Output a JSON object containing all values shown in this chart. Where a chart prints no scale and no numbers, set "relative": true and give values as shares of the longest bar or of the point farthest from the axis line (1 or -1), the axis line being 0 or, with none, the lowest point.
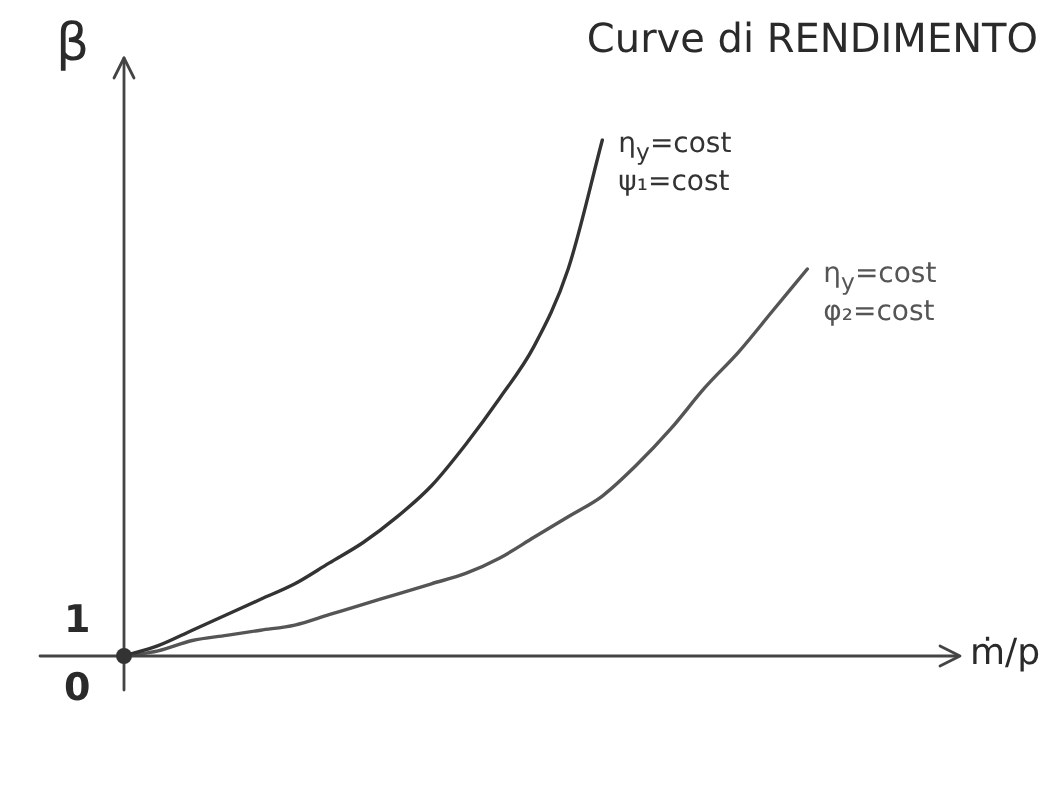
{
  "chart_data": {
    "type": "line",
    "title": "Curve di RENDIMENTO",
    "xlabel": "ṁ/p",
    "ylabel": "β",
    "relative": true,
    "annotations": [
      "1",
      "0"
    ],
    "marker": "none",
    "line_style": "solid",
    "categories": [
      null,
      null,
      null,
      null,
      null,
      null,
      null,
      null,
      null,
      null,
      null,
      null,
      null,
      null,
      null,
      null,
      null,
      null,
      null,
      null,
      null,
      null,
      null,
      null,
      null
    ],
    "series": [
      {
        "name": "η$_{y}$=cost\nψ₁=cost",
        "color": "#333333",
        "values": [
          0,
          0.02,
          0.05,
          0.08,
          0.11,
          0.14,
          0.18,
          0.22,
          0.27,
          0.33,
          0.41,
          0.5,
          0.6,
          0.75,
          1,
          null,
          null,
          null,
          null,
          null,
          null,
          null,
          null,
          null,
          null
        ]
      },
      {
        "name": "η$_{y}$=cost\nφ₂=cost",
        "color": "#555555",
        "values": [
          0,
          0.01,
          0.03,
          0.04,
          0.05,
          0.06,
          0.08,
          0.1,
          0.12,
          0.14,
          0.16,
          0.19,
          0.23,
          0.27,
          0.31,
          0.37,
          0.44,
          0.52,
          0.59,
          0.67,
          0.75,
          null,
          null,
          null,
          null
        ]
      }
    ]
  }
}
